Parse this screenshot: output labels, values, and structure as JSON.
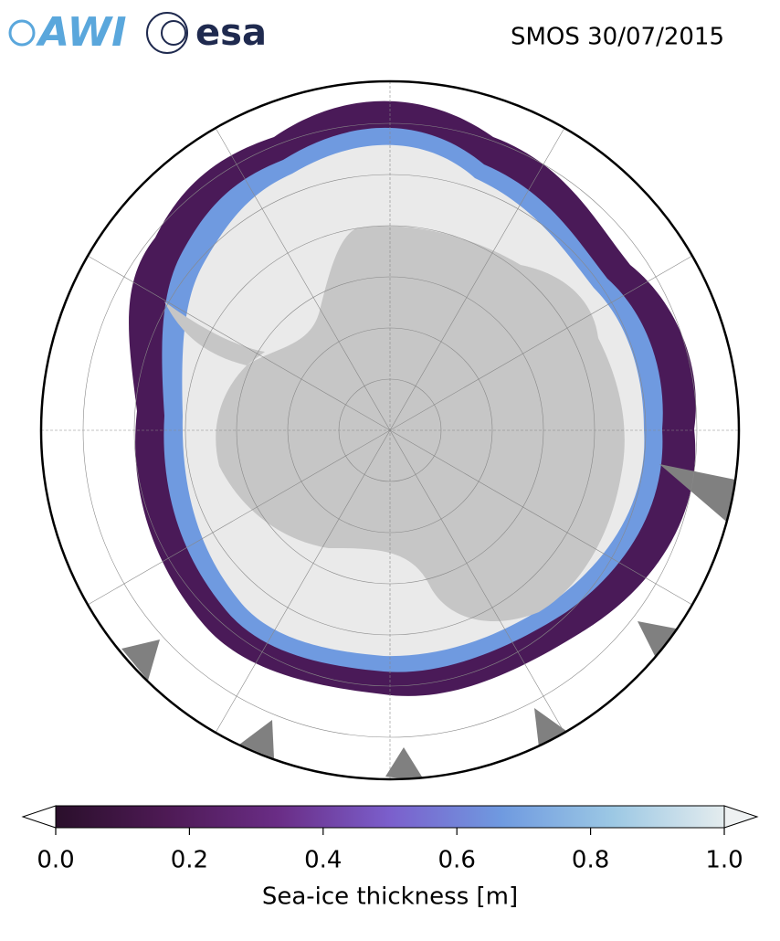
{
  "header": {
    "logo_awi": "AWI",
    "logo_esa": "esa",
    "title": "SMOS 30/07/2015"
  },
  "colorbar": {
    "label": "Sea-ice thickness [m]",
    "lim": [
      0,
      1
    ],
    "ticks": [
      {
        "value": 0,
        "label": "0.0"
      },
      0.2,
      0.4,
      0.6,
      0.8,
      {
        "value": 1,
        "label": "1.0"
      }
    ],
    "colors": [
      "#2a0f2b",
      "#4e1a55",
      "#6a2d86",
      "#7b5fcc",
      "#6f9ae0",
      "#9cc8e4",
      "#e4ecee"
    ],
    "under_color": "#ffffff",
    "over_color": "#eef1f2"
  }
}
